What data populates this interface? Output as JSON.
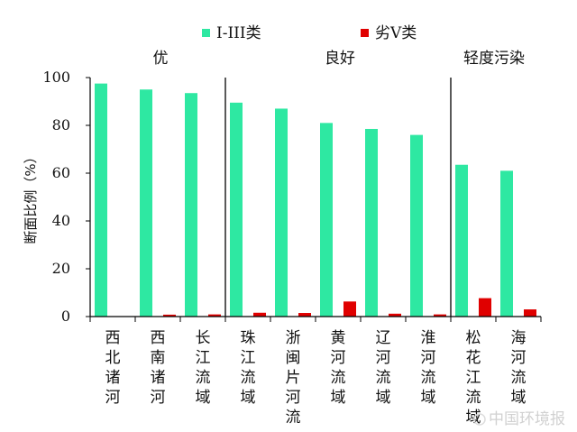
{
  "chart_data": {
    "type": "bar",
    "categories": [
      "西北诸河",
      "西南诸河",
      "长江流域",
      "珠江流域",
      "浙闽片河流",
      "黄河流域",
      "辽河流域",
      "淮河流域",
      "松花江流域",
      "海河流域"
    ],
    "series": [
      {
        "name": "I-III类",
        "color": "#2ee8a2",
        "values": [
          97.5,
          95,
          93.5,
          89.5,
          87,
          81,
          78.5,
          76,
          63.5,
          61
        ]
      },
      {
        "name": "劣V类",
        "color": "#e00000",
        "values": [
          0,
          0.8,
          0.9,
          1.6,
          1.5,
          6.3,
          1.2,
          0.9,
          7.7,
          3.0
        ]
      }
    ],
    "groups": [
      {
        "label": "优",
        "from": 0,
        "to": 2
      },
      {
        "label": "良好",
        "from": 3,
        "to": 7
      },
      {
        "label": "轻度污染",
        "from": 8,
        "to": 9
      }
    ],
    "ylabel": "断面比例（%）",
    "xlabel": "",
    "ylim": [
      0,
      100
    ],
    "yticks": [
      0,
      20,
      40,
      60,
      80,
      100
    ],
    "grid": false,
    "legend_position": "top-center"
  },
  "watermark": "中国环境报"
}
